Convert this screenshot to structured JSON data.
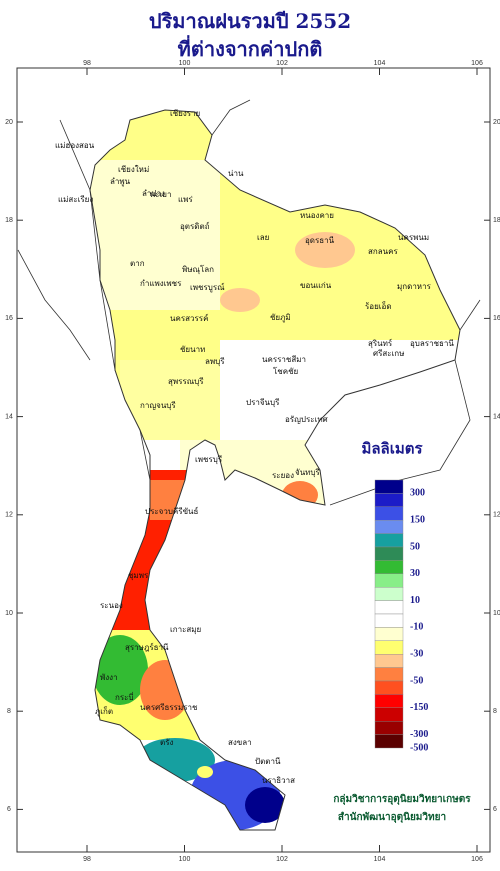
{
  "title": "ปริมาณฝนรวมปี  2552",
  "subtitle": "ที่ต่างจากค่าปกติ",
  "map": {
    "xticks": [
      98,
      100,
      102,
      104,
      106
    ],
    "yticks": [
      6,
      8,
      10,
      12,
      14,
      16,
      18,
      20
    ],
    "place_labels": [
      "เชียงราย",
      "แม่ฮ่องสอน",
      "เชียงใหม่",
      "ลำพูน",
      "พะเยา",
      "น่าน",
      "ลำปาง",
      "แพร่",
      "แม่สะเรียง",
      "อุตรดิตถ์",
      "หนองคาย",
      "อุดรธานี",
      "สกลนคร",
      "นครพนม",
      "เลย",
      "ตาก",
      "พิษณุโลก",
      "กำแพงเพชร",
      "เพชรบูรณ์",
      "ขอนแก่น",
      "มุกดาหาร",
      "นครสวรรค์",
      "ชัยภูมิ",
      "ร้อยเอ็ด",
      "ชัยนาท",
      "ลพบุรี",
      "สุรินทร์",
      "อุบลราชธานี",
      "ศรีสะเกษ",
      "นครราชสีมา",
      "โชคชัย",
      "สุพรรณบุรี",
      "กาญจนบุรี",
      "ปราจีนบุรี",
      "อรัญประเทศ",
      "ระยอง",
      "จันทบุรี",
      "เพชรบุรี",
      "ประจวบคีรีขันธ์",
      "ชุมพร",
      "ระนอง",
      "เกาะสมุย",
      "สุราษฎร์ธานี",
      "นครศรีธรรมราช",
      "พังงา",
      "ภูเก็ต",
      "กระบี่",
      "ตรัง",
      "สงขลา",
      "ปัตตานี",
      "นราธิวาส"
    ]
  },
  "legend": {
    "title": "มิลลิเมตร",
    "labels": [
      300,
      150,
      50,
      30,
      10,
      -10,
      -30,
      -50,
      -150,
      -300,
      -500
    ],
    "colors": [
      "#00008b",
      "#1c1cc8",
      "#3c50e6",
      "#6a8cf0",
      "#16a0a0",
      "#2e8b57",
      "#33bb33",
      "#88ee88",
      "#ccffcc",
      "#ffffff",
      "#ffffff",
      "#ffffd0",
      "#ffff70",
      "#ffc890",
      "#ff8040",
      "#ff5020",
      "#ff0000",
      "#cc0000",
      "#990000",
      "#5a0000"
    ]
  },
  "credits": [
    "กลุ่มวิชาการอุตุนิยมวิทยาเกษตร",
    "สำนักพัฒนาอุตุนิยมวิทยา"
  ]
}
